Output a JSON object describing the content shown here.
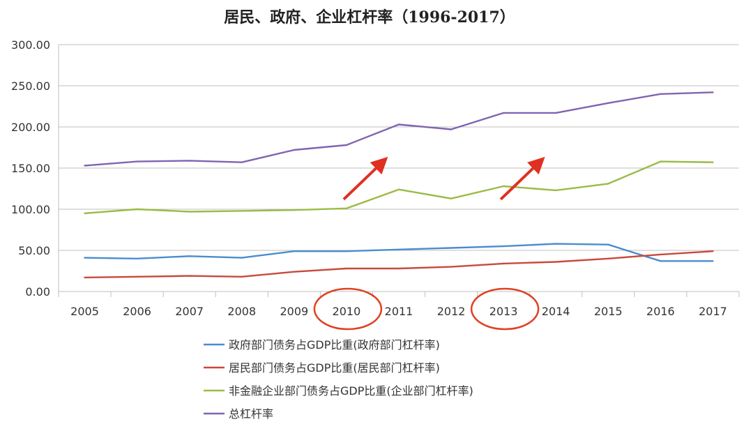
{
  "chart_data": {
    "type": "line",
    "title": "居民、政府、企业杠杆率（1996-2017）",
    "xlabel": "",
    "ylabel": "",
    "x": [
      "2005",
      "2006",
      "2007",
      "2008",
      "2009",
      "2010",
      "2011",
      "2012",
      "2013",
      "2014",
      "2015",
      "2016",
      "2017"
    ],
    "ylim": [
      0,
      300
    ],
    "yticks": [
      "0.00",
      "50.00",
      "100.00",
      "150.00",
      "200.00",
      "250.00",
      "300.00"
    ],
    "grid": true,
    "legend_position": "bottom",
    "series": [
      {
        "name": "政府部门债务占GDP比重(政府部门杠杆率)",
        "color": "#4a8ccf",
        "values": [
          41,
          40,
          43,
          41,
          49,
          49,
          51,
          53,
          55,
          58,
          57,
          37,
          37
        ]
      },
      {
        "name": "居民部门债务占GDP比重(居民部门杠杆率)",
        "color": "#c84a3c",
        "values": [
          17,
          18,
          19,
          18,
          24,
          28,
          28,
          30,
          34,
          36,
          40,
          45,
          49
        ]
      },
      {
        "name": "非金融企业部门债务占GDP比重(企业部门杠杆率)",
        "color": "#9bbb45",
        "values": [
          95,
          100,
          97,
          98,
          99,
          101,
          124,
          113,
          128,
          123,
          131,
          158,
          157
        ]
      },
      {
        "name": "总杠杆率",
        "color": "#8064b2",
        "values": [
          153,
          158,
          159,
          157,
          172,
          178,
          203,
          197,
          217,
          217,
          229,
          240,
          242
        ]
      }
    ],
    "annotations": {
      "circled_years": [
        "2010",
        "2013"
      ],
      "circle_color": "#e04020",
      "arrow_color": "#e03020",
      "arrows_count": 2
    }
  }
}
